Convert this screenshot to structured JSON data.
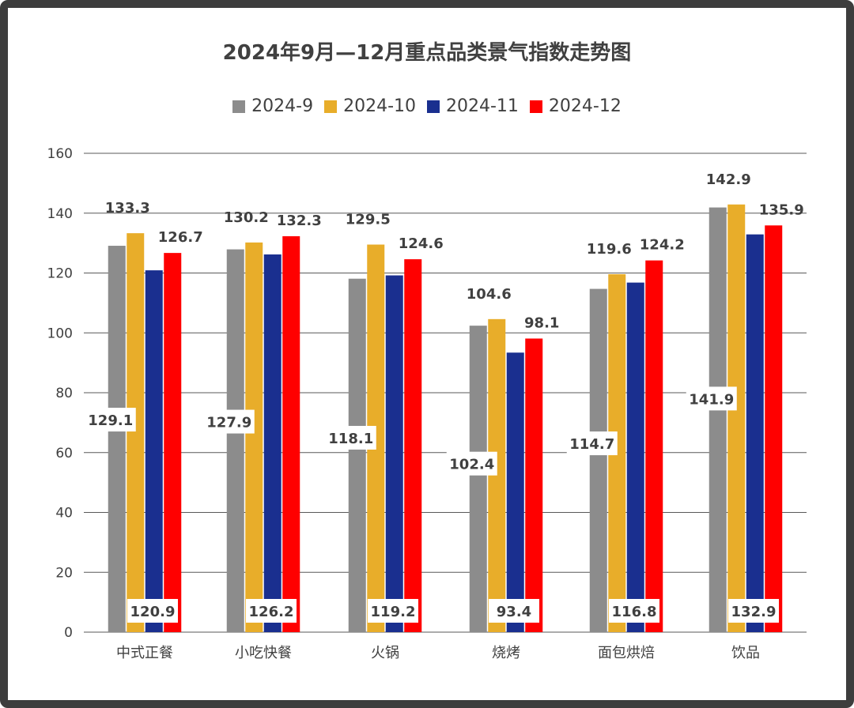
{
  "chart_data": {
    "type": "bar",
    "title": "2024年9月—12月重点品类景气指数走势图",
    "categories": [
      "中式正餐",
      "小吃快餐",
      "火锅",
      "烧烤",
      "面包烘焙",
      "饮品"
    ],
    "series": [
      {
        "name": "2024-9",
        "color": "#8c8c8c",
        "values": [
          129.1,
          127.9,
          118.1,
          102.4,
          114.7,
          141.9
        ]
      },
      {
        "name": "2024-10",
        "color": "#e8ad2a",
        "values": [
          133.3,
          130.2,
          129.5,
          104.6,
          119.6,
          142.9
        ]
      },
      {
        "name": "2024-11",
        "color": "#1a2f8f",
        "values": [
          120.9,
          126.2,
          119.2,
          93.4,
          116.8,
          132.9
        ]
      },
      {
        "name": "2024-12",
        "color": "#ff0000",
        "values": [
          126.7,
          132.3,
          124.6,
          98.1,
          124.2,
          135.9
        ]
      }
    ],
    "ylim": [
      0,
      160
    ],
    "yticks": [
      0,
      20,
      40,
      60,
      80,
      100,
      120,
      140,
      160
    ],
    "grid": true,
    "legend_position": "top-center",
    "xlabel": "",
    "ylabel": ""
  }
}
